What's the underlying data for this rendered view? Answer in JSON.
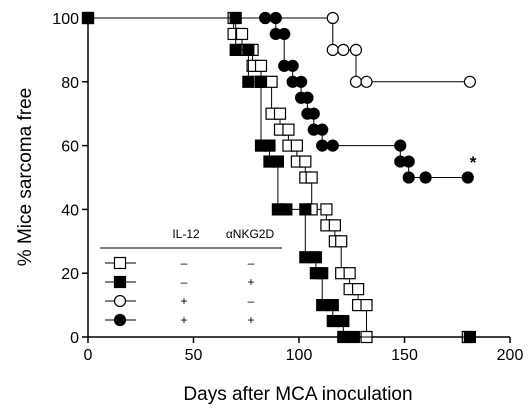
{
  "chart_data": {
    "type": "line",
    "title": "",
    "xlabel": "Days after MCA inoculation",
    "ylabel": "% Mice sarcoma free",
    "xlim": [
      0,
      200
    ],
    "ylim": [
      0,
      100
    ],
    "xticks": [
      "0",
      "50",
      "100",
      "150",
      "200"
    ],
    "yticks": [
      "0",
      "20",
      "40",
      "60",
      "80",
      "100"
    ],
    "grid": false,
    "legend_position": "lower-left",
    "legend_headers": [
      "IL-12",
      "αNKG2D"
    ],
    "annotation": "*",
    "series": [
      {
        "marker": "open-square",
        "il12": "–",
        "ankg2d": "–",
        "points": [
          [
            0,
            100
          ],
          [
            69,
            100
          ],
          [
            69,
            95
          ],
          [
            73,
            95
          ],
          [
            73,
            90
          ],
          [
            78,
            90
          ],
          [
            78,
            85
          ],
          [
            82,
            85
          ],
          [
            82,
            80
          ],
          [
            87,
            80
          ],
          [
            87,
            70
          ],
          [
            91,
            70
          ],
          [
            91,
            65
          ],
          [
            95,
            65
          ],
          [
            95,
            60
          ],
          [
            99,
            60
          ],
          [
            99,
            55
          ],
          [
            103,
            55
          ],
          [
            103,
            50
          ],
          [
            106,
            50
          ],
          [
            106,
            40
          ],
          [
            113,
            40
          ],
          [
            113,
            35
          ],
          [
            117,
            35
          ],
          [
            117,
            30
          ],
          [
            120,
            30
          ],
          [
            120,
            20
          ],
          [
            124,
            20
          ],
          [
            124,
            15
          ],
          [
            128,
            15
          ],
          [
            128,
            10
          ],
          [
            132,
            10
          ],
          [
            132,
            0
          ],
          [
            180,
            0
          ]
        ]
      },
      {
        "marker": "filled-square",
        "il12": "–",
        "ankg2d": "+",
        "points": [
          [
            0,
            100
          ],
          [
            70,
            100
          ],
          [
            70,
            90
          ],
          [
            76,
            90
          ],
          [
            76,
            80
          ],
          [
            82,
            80
          ],
          [
            82,
            60
          ],
          [
            86,
            60
          ],
          [
            86,
            55
          ],
          [
            90,
            55
          ],
          [
            90,
            40
          ],
          [
            94,
            40
          ],
          [
            103,
            40
          ],
          [
            103,
            25
          ],
          [
            108,
            25
          ],
          [
            108,
            20
          ],
          [
            111,
            20
          ],
          [
            111,
            10
          ],
          [
            116,
            10
          ],
          [
            116,
            5
          ],
          [
            121,
            5
          ],
          [
            121,
            0
          ],
          [
            126,
            0
          ],
          [
            181,
            0
          ]
        ]
      },
      {
        "marker": "open-circle",
        "il12": "+",
        "ankg2d": "–",
        "points": [
          [
            0,
            100
          ],
          [
            84,
            100
          ],
          [
            116,
            100
          ],
          [
            116,
            90
          ],
          [
            121,
            90
          ],
          [
            127,
            90
          ],
          [
            127,
            80
          ],
          [
            132,
            80
          ],
          [
            181,
            80
          ]
        ]
      },
      {
        "marker": "filled-circle",
        "il12": "+",
        "ankg2d": "+",
        "points": [
          [
            0,
            100
          ],
          [
            84,
            100
          ],
          [
            89,
            100
          ],
          [
            89,
            95
          ],
          [
            93,
            95
          ],
          [
            93,
            85
          ],
          [
            97,
            85
          ],
          [
            97,
            80
          ],
          [
            101,
            80
          ],
          [
            101,
            75
          ],
          [
            104,
            75
          ],
          [
            104,
            70
          ],
          [
            107,
            70
          ],
          [
            107,
            65
          ],
          [
            111,
            65
          ],
          [
            111,
            60
          ],
          [
            116,
            60
          ],
          [
            116,
            60
          ],
          [
            148,
            60
          ],
          [
            148,
            55
          ],
          [
            152,
            55
          ],
          [
            152,
            50
          ],
          [
            160,
            50
          ],
          [
            180,
            50
          ]
        ]
      }
    ]
  }
}
